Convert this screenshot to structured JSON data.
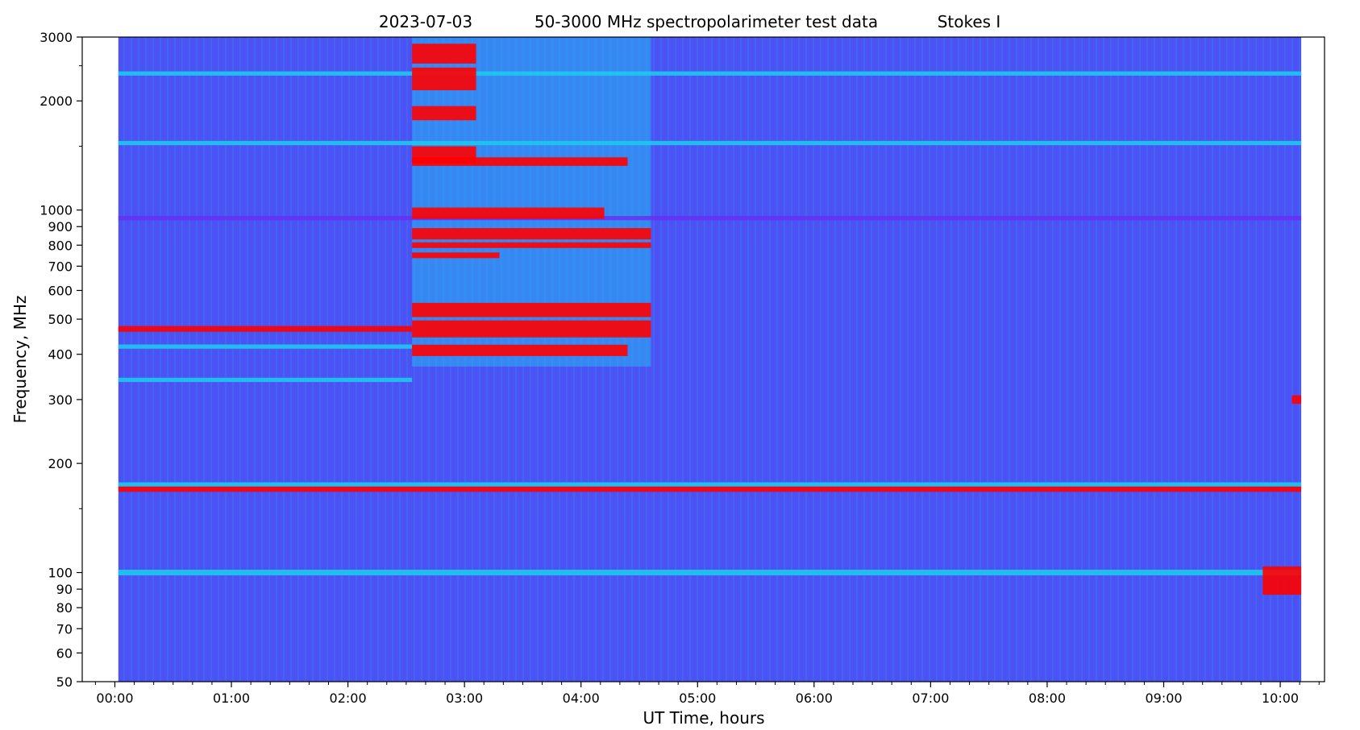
{
  "chart_data": {
    "type": "heatmap",
    "title": {
      "date": "2023-07-03",
      "name": "50-3000 MHz spectropolarimeter test data",
      "stokes": "Stokes I"
    },
    "xlabel": "UT Time, hours",
    "ylabel": "Frequency, MHz",
    "xlim": [
      -0.28,
      10.38
    ],
    "ylim": [
      50,
      3000
    ],
    "yscale": "log",
    "data_time_range": [
      0.03,
      10.18
    ],
    "x_ticks": [
      {
        "value": 0,
        "label": "00:00"
      },
      {
        "value": 1,
        "label": "01:00"
      },
      {
        "value": 2,
        "label": "02:00"
      },
      {
        "value": 3,
        "label": "03:00"
      },
      {
        "value": 4,
        "label": "04:00"
      },
      {
        "value": 5,
        "label": "05:00"
      },
      {
        "value": 6,
        "label": "06:00"
      },
      {
        "value": 7,
        "label": "07:00"
      },
      {
        "value": 8,
        "label": "08:00"
      },
      {
        "value": 9,
        "label": "09:00"
      },
      {
        "value": 10,
        "label": "10:00"
      }
    ],
    "y_ticks": [
      {
        "value": 50,
        "label": "50"
      },
      {
        "value": 60,
        "label": "60"
      },
      {
        "value": 70,
        "label": "70"
      },
      {
        "value": 80,
        "label": "80"
      },
      {
        "value": 90,
        "label": "90"
      },
      {
        "value": 100,
        "label": "100"
      },
      {
        "value": 200,
        "label": "200"
      },
      {
        "value": 300,
        "label": "300"
      },
      {
        "value": 400,
        "label": "400"
      },
      {
        "value": 500,
        "label": "500"
      },
      {
        "value": 600,
        "label": "600"
      },
      {
        "value": 700,
        "label": "700"
      },
      {
        "value": 800,
        "label": "800"
      },
      {
        "value": 900,
        "label": "900"
      },
      {
        "value": 1000,
        "label": "1000"
      },
      {
        "value": 2000,
        "label": "2000"
      },
      {
        "value": 3000,
        "label": "3000"
      }
    ],
    "colormap": {
      "background": "#4a54f5",
      "low": "#6a2cf0",
      "mid": "#1ec8f0",
      "high": "#ff0000"
    },
    "grid": false,
    "bands": [
      {
        "t0": 0.03,
        "t1": 10.18,
        "f": 170,
        "width": 0.004,
        "intensity": "high"
      },
      {
        "t0": 0.03,
        "t1": 10.18,
        "f": 175,
        "width": 0.003,
        "intensity": "mid"
      },
      {
        "t0": 0.03,
        "t1": 10.18,
        "f": 1530,
        "width": 0.003,
        "intensity": "mid"
      },
      {
        "t0": 0.03,
        "t1": 10.18,
        "f": 950,
        "width": 0.003,
        "intensity": "low"
      },
      {
        "t0": 0.03,
        "t1": 10.18,
        "f": 2380,
        "width": 0.003,
        "intensity": "mid"
      },
      {
        "t0": 0.03,
        "t1": 2.55,
        "f": 470,
        "width": 0.004,
        "intensity": "high"
      },
      {
        "t0": 0.03,
        "t1": 2.55,
        "f": 420,
        "width": 0.003,
        "intensity": "mid"
      },
      {
        "t0": 0.03,
        "t1": 2.55,
        "f": 340,
        "width": 0.003,
        "intensity": "mid"
      },
      {
        "t0": 0.03,
        "t1": 10.18,
        "f": 100,
        "width": 0.004,
        "intensity": "mid"
      },
      {
        "t0": 2.55,
        "t1": 4.6,
        "f": 470,
        "width": 0.012,
        "intensity": "high"
      },
      {
        "t0": 2.55,
        "t1": 4.6,
        "f": 530,
        "width": 0.01,
        "intensity": "high"
      },
      {
        "t0": 2.55,
        "t1": 4.6,
        "f": 860,
        "width": 0.008,
        "intensity": "high"
      },
      {
        "t0": 2.55,
        "t1": 4.4,
        "f": 410,
        "width": 0.008,
        "intensity": "high"
      },
      {
        "t0": 2.55,
        "t1": 4.2,
        "f": 980,
        "width": 0.008,
        "intensity": "high"
      },
      {
        "t0": 2.55,
        "t1": 4.4,
        "f": 1360,
        "width": 0.006,
        "intensity": "high"
      },
      {
        "t0": 2.55,
        "t1": 3.1,
        "f": 1420,
        "width": 0.012,
        "intensity": "high"
      },
      {
        "t0": 2.55,
        "t1": 3.1,
        "f": 2300,
        "width": 0.016,
        "intensity": "high"
      },
      {
        "t0": 2.55,
        "t1": 3.1,
        "f": 2700,
        "width": 0.014,
        "intensity": "high"
      },
      {
        "t0": 2.55,
        "t1": 3.1,
        "f": 1850,
        "width": 0.01,
        "intensity": "high"
      },
      {
        "t0": 2.55,
        "t1": 4.6,
        "f": 800,
        "width": 0.004,
        "intensity": "high"
      },
      {
        "t0": 2.55,
        "t1": 3.3,
        "f": 750,
        "width": 0.004,
        "intensity": "high"
      },
      {
        "t0": 9.85,
        "t1": 10.18,
        "f": 95,
        "width": 0.02,
        "intensity": "high"
      },
      {
        "t0": 10.1,
        "t1": 10.18,
        "f": 300,
        "width": 0.006,
        "intensity": "high"
      }
    ],
    "burst_region": {
      "t0": 2.55,
      "t1": 4.6,
      "f0": 370,
      "f1": 3000,
      "intensity": "mid"
    }
  }
}
